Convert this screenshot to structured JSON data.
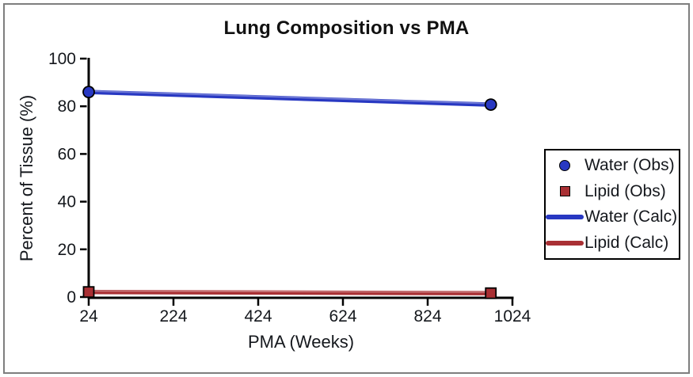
{
  "figure": {
    "background_color": "#ffffff",
    "border_color": "#7e7e7e"
  },
  "chart_data": {
    "type": "line",
    "title": "Lung Composition vs PMA",
    "xlabel": "PMA (Weeks)",
    "ylabel": "Percent of Tissue (%)",
    "xlim": [
      24,
      1024
    ],
    "ylim": [
      0,
      100
    ],
    "x_ticks": [
      24,
      224,
      424,
      624,
      824,
      1024
    ],
    "y_ticks": [
      0,
      20,
      40,
      60,
      80,
      100
    ],
    "grid": false,
    "legend_position": "right",
    "axis_color": "#000000",
    "tick_label_color": "#15181d",
    "series": [
      {
        "name": "Water (Obs)",
        "type": "scatter",
        "marker": "circle",
        "color": "#2838c2",
        "x": [
          24,
          973
        ],
        "y": [
          86,
          80.7
        ]
      },
      {
        "name": "Lipid (Obs)",
        "type": "scatter",
        "marker": "square",
        "color": "#a93034",
        "x": [
          24,
          973
        ],
        "y": [
          2.1,
          1.6
        ]
      },
      {
        "name": "Water (Calc)",
        "type": "line",
        "color": "#2838c2",
        "x": [
          24,
          973
        ],
        "y": [
          86,
          80.7
        ]
      },
      {
        "name": "Lipid (Calc)",
        "type": "line",
        "color": "#a93034",
        "x": [
          24,
          973
        ],
        "y": [
          2.1,
          1.6
        ]
      }
    ]
  }
}
